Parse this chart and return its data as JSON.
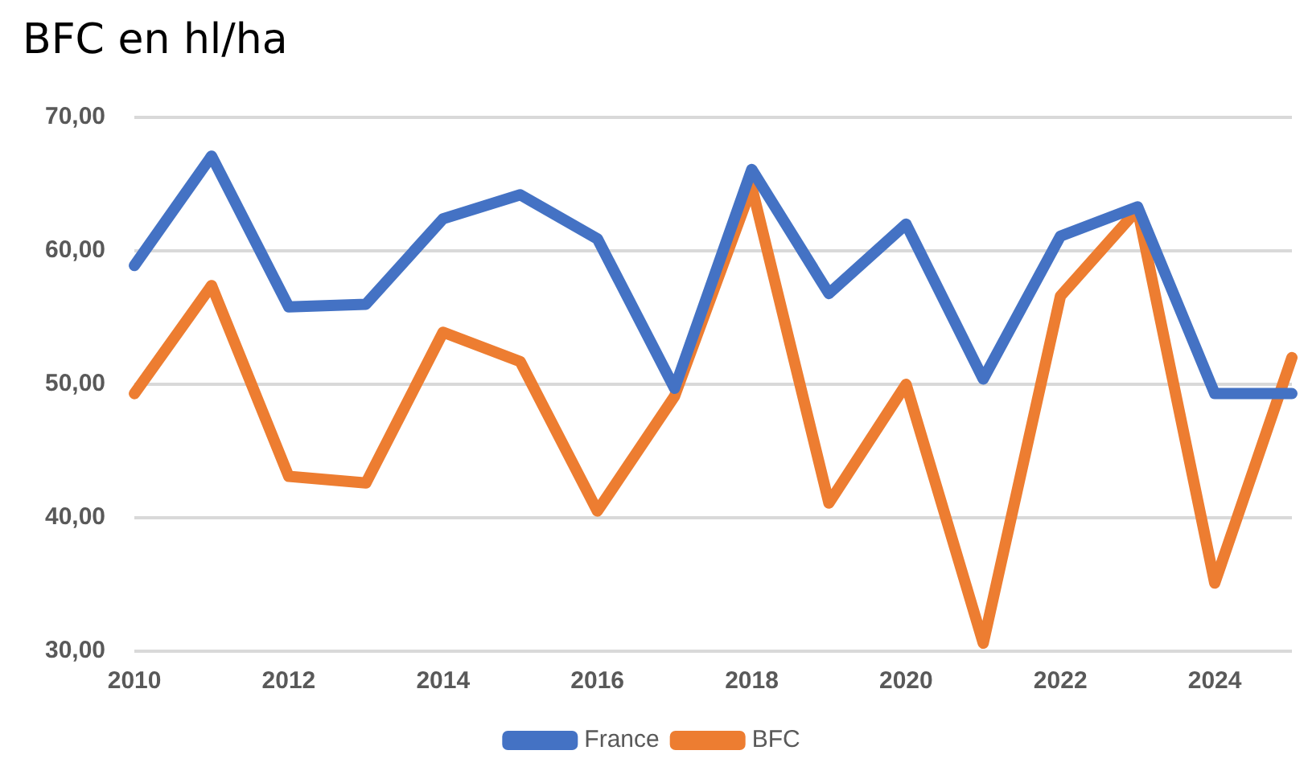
{
  "chart_data": {
    "type": "line",
    "title": "BFC en hl/ha",
    "categories": [
      "2010",
      null,
      "2012",
      null,
      "2014",
      null,
      "2016",
      null,
      "2018",
      null,
      "2020",
      null,
      "2022",
      null,
      "2024",
      null
    ],
    "series": [
      {
        "name": "France",
        "color": "#4472c4",
        "values": [
          58.9,
          67.1,
          55.8,
          56.0,
          62.4,
          64.2,
          60.9,
          49.7,
          66.1,
          56.8,
          62.0,
          50.4,
          61.1,
          63.3,
          49.3,
          49.3
        ]
      },
      {
        "name": "BFC",
        "color": "#ed7d31",
        "values": [
          49.3,
          57.4,
          43.1,
          42.6,
          53.9,
          51.7,
          40.5,
          49.1,
          64.8,
          41.1,
          50.0,
          30.6,
          56.6,
          63.1,
          35.1,
          52.0
        ]
      }
    ],
    "ylim": [
      30,
      70
    ],
    "yticks": [
      {
        "value": 30,
        "label": "30,00"
      },
      {
        "value": 40,
        "label": "40,00"
      },
      {
        "value": 50,
        "label": "50,00"
      },
      {
        "value": 60,
        "label": "60,00"
      },
      {
        "value": 70,
        "label": "70,00"
      }
    ],
    "grid": "y",
    "legend": "bottom",
    "marker": "none",
    "line_style": "solid"
  }
}
